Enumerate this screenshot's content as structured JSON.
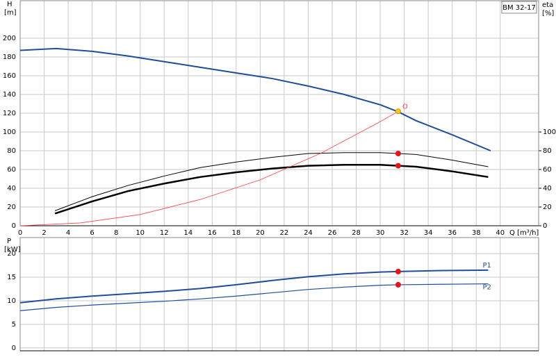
{
  "chart_data": [
    {
      "type": "line",
      "title": "BM 32-17",
      "ylabel": "H",
      "yunit": "[m]",
      "y2label": "eta",
      "y2unit": "[%]",
      "xlabel": "Q [m³/h]",
      "xlim": [
        0,
        43.2
      ],
      "xticks": [
        0,
        2,
        4,
        6,
        8,
        10,
        12,
        14,
        16,
        18,
        20,
        22,
        24,
        26,
        28,
        30,
        32,
        34,
        36,
        38,
        40
      ],
      "ylim": [
        0,
        240
      ],
      "yticks": [
        0,
        20,
        40,
        60,
        80,
        100,
        120,
        140,
        160,
        180,
        200
      ],
      "y2lim": [
        0,
        240
      ],
      "y2ticks": [
        0,
        20,
        40,
        60,
        80,
        100
      ],
      "grid": true,
      "series": [
        {
          "color": "#1f4e99",
          "width": 2,
          "x": [
            0,
            3,
            6,
            9,
            12,
            15,
            18,
            21,
            24,
            27,
            30,
            31.5,
            33,
            36,
            39.2
          ],
          "values": [
            187,
            189,
            186,
            181,
            175,
            169,
            163,
            157,
            149,
            140,
            129,
            121.5,
            112,
            97,
            80
          ]
        },
        {
          "color": "#000000",
          "width": 1,
          "axis": "y2",
          "x": [
            2.9,
            6,
            9,
            12,
            15,
            18,
            21,
            24,
            27,
            30,
            31.5,
            33,
            36,
            39
          ],
          "values": [
            16,
            31,
            43,
            53,
            62,
            68,
            73,
            77,
            78,
            78,
            77,
            76,
            70,
            63
          ]
        },
        {
          "color": "#000000",
          "width": 2.5,
          "axis": "y2",
          "x": [
            2.9,
            6,
            9,
            12,
            15,
            18,
            21,
            24,
            27,
            30,
            31.5,
            33,
            36,
            39
          ],
          "values": [
            13,
            26,
            37,
            45,
            52,
            57,
            61,
            64,
            65,
            65,
            64,
            63,
            58,
            52
          ]
        },
        {
          "color": "#ff4040",
          "width": 0.8,
          "x": [
            0,
            5,
            10,
            15,
            20,
            25,
            30,
            31.5
          ],
          "values": [
            0,
            3,
            12,
            28,
            49,
            77,
            111,
            122
          ]
        }
      ],
      "points": [
        {
          "color": "#ffcc00",
          "x": 31.5,
          "value": 122
        },
        {
          "color": "#ee1111",
          "axis": "y2",
          "x": 31.5,
          "value": 77
        },
        {
          "color": "#ee1111",
          "axis": "y2",
          "x": 31.5,
          "value": 64
        }
      ],
      "annotation": "O"
    },
    {
      "type": "line",
      "ylabel": "P",
      "yunit": "[kW]",
      "xlim": [
        0,
        43.2
      ],
      "xticks": [
        0,
        2,
        4,
        6,
        8,
        10,
        12,
        14,
        16,
        18,
        20,
        22,
        24,
        26,
        28,
        30,
        32,
        34,
        36,
        38,
        40
      ],
      "ylim": [
        -0.6,
        23.4
      ],
      "yticks": [
        0,
        5,
        10,
        15,
        20
      ],
      "grid": true,
      "series": [
        {
          "name": "P1",
          "color": "#1f4e99",
          "width": 2,
          "x": [
            0,
            3,
            6,
            9,
            12,
            15,
            18,
            21,
            24,
            27,
            30,
            31.5,
            35,
            39
          ],
          "values": [
            9.6,
            10.4,
            11,
            11.5,
            12,
            12.6,
            13.4,
            14.3,
            15.1,
            15.7,
            16.1,
            16.2,
            16.4,
            16.5
          ]
        },
        {
          "name": "P2",
          "color": "#1f4e99",
          "width": 1.2,
          "x": [
            0,
            3,
            6,
            9,
            12,
            15,
            18,
            21,
            24,
            27,
            30,
            31.5,
            35,
            39
          ],
          "values": [
            7.9,
            8.6,
            9.1,
            9.5,
            9.9,
            10.4,
            11,
            11.7,
            12.4,
            12.9,
            13.3,
            13.4,
            13.5,
            13.6
          ]
        }
      ],
      "points": [
        {
          "color": "#ee1111",
          "x": 31.5,
          "value": 16.2
        },
        {
          "color": "#ee1111",
          "x": 31.5,
          "value": 13.4
        }
      ]
    }
  ]
}
